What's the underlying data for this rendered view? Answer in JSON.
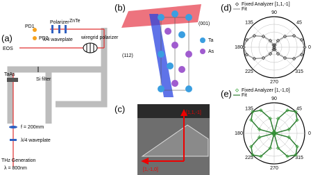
{
  "panel_a": {
    "label": "(a)",
    "pd1": "PD1",
    "pd2": "PD2",
    "polarizer": "Polarizer",
    "znte": "ZnTe",
    "waveplate_top": "λ/4 waveplate",
    "eos": "EOS",
    "wiregrid": "wiregrid polarizer",
    "sample": "TaAs",
    "si_filter": "Si filter",
    "lens": "f = 200mm",
    "waveplate_bottom": "λ/4 waveplate",
    "generation": "THz Generation",
    "wavelength": "λ = 800nm"
  },
  "panel_b": {
    "label": "(b)",
    "plane_001": "(001)",
    "plane_112": "(112)",
    "legend": [
      {
        "name": "Ta",
        "color": "#3a9ee0"
      },
      {
        "name": "As",
        "color": "#a05ccf"
      }
    ]
  },
  "panel_c": {
    "label": "(c)",
    "direction_1": "[1,1,-1]",
    "direction_2": "[1,-1,0]"
  },
  "chart_data": [
    {
      "type": "polar",
      "label": "(d)",
      "rlim": [
        0,
        1
      ],
      "x": [
        0,
        15,
        30,
        45,
        60,
        75,
        90,
        105,
        120,
        135,
        150,
        165,
        180,
        195,
        210,
        225,
        240,
        255,
        270,
        285,
        300,
        315,
        330,
        345
      ],
      "xticks": [
        0,
        45,
        90,
        135,
        180,
        225,
        270,
        315
      ],
      "series": [
        {
          "name": "Fixed Analyzer [1,1,-1]",
          "color": "#333333",
          "values": [
            1,
            0.93,
            0.75,
            0.5,
            0.25,
            0.07,
            0,
            0.07,
            0.25,
            0.5,
            0.75,
            0.93,
            1,
            0.93,
            0.75,
            0.5,
            0.25,
            0.07,
            0,
            0.07,
            0.25,
            0.5,
            0.75,
            0.93
          ]
        },
        {
          "name": "Fit",
          "color": "#999999",
          "values": [
            1,
            0.93,
            0.75,
            0.5,
            0.25,
            0.07,
            0,
            0.07,
            0.25,
            0.5,
            0.75,
            0.93,
            1,
            0.93,
            0.75,
            0.5,
            0.25,
            0.07,
            0,
            0.07,
            0.25,
            0.5,
            0.75,
            0.93
          ]
        }
      ]
    },
    {
      "type": "polar",
      "label": "(e)",
      "rlim": [
        0,
        1
      ],
      "x": [
        0,
        15,
        30,
        45,
        60,
        75,
        90,
        105,
        120,
        135,
        150,
        165,
        180,
        195,
        210,
        225,
        240,
        255,
        270,
        285,
        300,
        315,
        330,
        345
      ],
      "xticks": [
        0,
        45,
        90,
        135,
        180,
        225,
        270,
        315
      ],
      "series": [
        {
          "name": "Fixed Analyzer [1,-1,0]",
          "color": "#3aa53a",
          "values": [
            0.05,
            0.5,
            0.87,
            1,
            0.87,
            0.5,
            0.05,
            0.5,
            0.87,
            1,
            0.87,
            0.5,
            0.05,
            0.5,
            0.87,
            1,
            0.87,
            0.5,
            0.05,
            0.5,
            0.87,
            1,
            0.87,
            0.5
          ]
        },
        {
          "name": "Fit",
          "color": "#2e7d32",
          "values": [
            0,
            0.5,
            0.87,
            1,
            0.87,
            0.5,
            0,
            0.5,
            0.87,
            1,
            0.87,
            0.5,
            0,
            0.5,
            0.87,
            1,
            0.87,
            0.5,
            0,
            0.5,
            0.87,
            1,
            0.87,
            0.5
          ]
        }
      ]
    }
  ]
}
